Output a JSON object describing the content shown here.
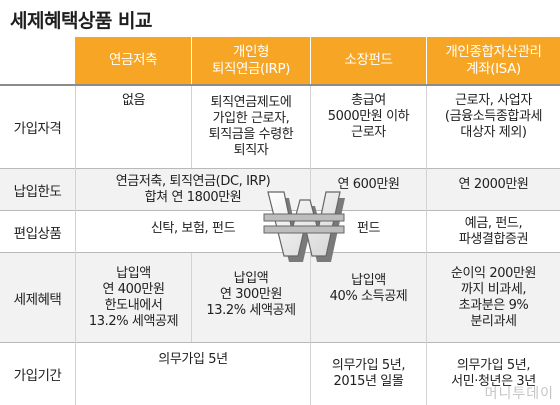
{
  "title": "세제혜택상품 비교",
  "columns": [
    "연금저축",
    "개인형\n퇴직연금(IRP)",
    "소장펀드",
    "개인종합자산관리\n계좌(ISA)"
  ],
  "rows": [
    {
      "label": "가입자격",
      "cells": [
        "없음",
        "퇴직연금제도에\n가입한 근로자,\n퇴직금을 수령한\n퇴직자",
        "총급여\n5000만원 이하\n근로자",
        "근로자, 사업자\n(금융소득종합과세\n대상자 제외)"
      ]
    },
    {
      "label": "납입한도",
      "cells": [
        "연금저축, 퇴직연금(DC, IRP)\n합쳐 연 1800만원",
        "연 600만원",
        "연 2000만원"
      ]
    },
    {
      "label": "편입상품",
      "cells": [
        "신탁, 보험, 펀드",
        "펀드",
        "예금, 펀드,\n파생결합증권"
      ]
    },
    {
      "label": "세제혜택",
      "cells": [
        "납입액\n연 400만원\n한도내에서\n13.2% 세액공제",
        "납입액\n연 300만원\n13.2% 세액공제",
        "납입액\n40% 소득공제",
        "순이익 200만원\n까지 비과세,\n초과분은 9%\n분리과세"
      ]
    },
    {
      "label": "가입기간",
      "cells": [
        "의무가입 5년",
        "의무가입 5년,\n2015년 일몰",
        "의무가입 5년,\n서민·청년은 3년"
      ]
    }
  ],
  "watermark": "머니투데이",
  "colors": {
    "header_bg": "#f6a624",
    "header_text": "#ffffff",
    "band_shade": "#f2f2f2",
    "won_symbol": "#cfcfcf"
  },
  "icons": {
    "center_mark": "won-symbol-3d"
  }
}
